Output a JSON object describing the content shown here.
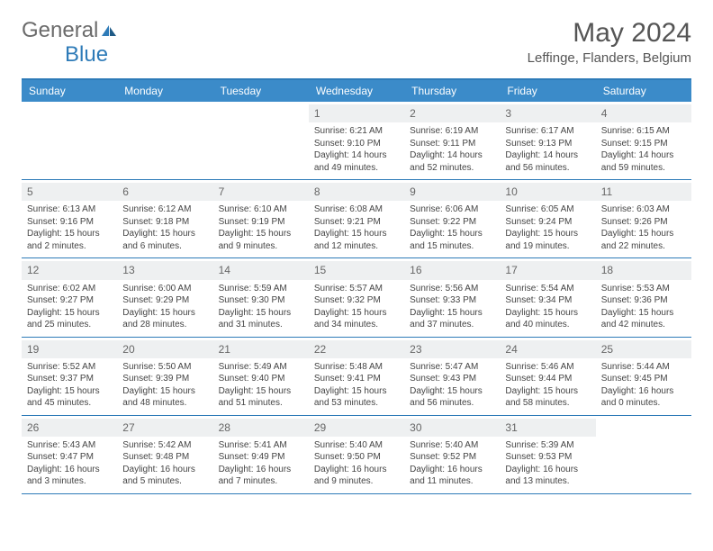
{
  "logo": {
    "text1": "General",
    "text2": "Blue"
  },
  "title": "May 2024",
  "location": "Leffinge, Flanders, Belgium",
  "colors": {
    "accent": "#2e7bb8",
    "header_bg": "#3b8bc9",
    "daynum_bg": "#eef0f1",
    "logo_gray": "#6b6b6b",
    "logo_blue": "#2e7bb8",
    "text": "#444444"
  },
  "dayNames": [
    "Sunday",
    "Monday",
    "Tuesday",
    "Wednesday",
    "Thursday",
    "Friday",
    "Saturday"
  ],
  "weeks": [
    [
      {
        "day": "",
        "sunrise": "",
        "sunset": "",
        "daylight": ""
      },
      {
        "day": "",
        "sunrise": "",
        "sunset": "",
        "daylight": ""
      },
      {
        "day": "",
        "sunrise": "",
        "sunset": "",
        "daylight": ""
      },
      {
        "day": "1",
        "sunrise": "Sunrise: 6:21 AM",
        "sunset": "Sunset: 9:10 PM",
        "daylight": "Daylight: 14 hours and 49 minutes."
      },
      {
        "day": "2",
        "sunrise": "Sunrise: 6:19 AM",
        "sunset": "Sunset: 9:11 PM",
        "daylight": "Daylight: 14 hours and 52 minutes."
      },
      {
        "day": "3",
        "sunrise": "Sunrise: 6:17 AM",
        "sunset": "Sunset: 9:13 PM",
        "daylight": "Daylight: 14 hours and 56 minutes."
      },
      {
        "day": "4",
        "sunrise": "Sunrise: 6:15 AM",
        "sunset": "Sunset: 9:15 PM",
        "daylight": "Daylight: 14 hours and 59 minutes."
      }
    ],
    [
      {
        "day": "5",
        "sunrise": "Sunrise: 6:13 AM",
        "sunset": "Sunset: 9:16 PM",
        "daylight": "Daylight: 15 hours and 2 minutes."
      },
      {
        "day": "6",
        "sunrise": "Sunrise: 6:12 AM",
        "sunset": "Sunset: 9:18 PM",
        "daylight": "Daylight: 15 hours and 6 minutes."
      },
      {
        "day": "7",
        "sunrise": "Sunrise: 6:10 AM",
        "sunset": "Sunset: 9:19 PM",
        "daylight": "Daylight: 15 hours and 9 minutes."
      },
      {
        "day": "8",
        "sunrise": "Sunrise: 6:08 AM",
        "sunset": "Sunset: 9:21 PM",
        "daylight": "Daylight: 15 hours and 12 minutes."
      },
      {
        "day": "9",
        "sunrise": "Sunrise: 6:06 AM",
        "sunset": "Sunset: 9:22 PM",
        "daylight": "Daylight: 15 hours and 15 minutes."
      },
      {
        "day": "10",
        "sunrise": "Sunrise: 6:05 AM",
        "sunset": "Sunset: 9:24 PM",
        "daylight": "Daylight: 15 hours and 19 minutes."
      },
      {
        "day": "11",
        "sunrise": "Sunrise: 6:03 AM",
        "sunset": "Sunset: 9:26 PM",
        "daylight": "Daylight: 15 hours and 22 minutes."
      }
    ],
    [
      {
        "day": "12",
        "sunrise": "Sunrise: 6:02 AM",
        "sunset": "Sunset: 9:27 PM",
        "daylight": "Daylight: 15 hours and 25 minutes."
      },
      {
        "day": "13",
        "sunrise": "Sunrise: 6:00 AM",
        "sunset": "Sunset: 9:29 PM",
        "daylight": "Daylight: 15 hours and 28 minutes."
      },
      {
        "day": "14",
        "sunrise": "Sunrise: 5:59 AM",
        "sunset": "Sunset: 9:30 PM",
        "daylight": "Daylight: 15 hours and 31 minutes."
      },
      {
        "day": "15",
        "sunrise": "Sunrise: 5:57 AM",
        "sunset": "Sunset: 9:32 PM",
        "daylight": "Daylight: 15 hours and 34 minutes."
      },
      {
        "day": "16",
        "sunrise": "Sunrise: 5:56 AM",
        "sunset": "Sunset: 9:33 PM",
        "daylight": "Daylight: 15 hours and 37 minutes."
      },
      {
        "day": "17",
        "sunrise": "Sunrise: 5:54 AM",
        "sunset": "Sunset: 9:34 PM",
        "daylight": "Daylight: 15 hours and 40 minutes."
      },
      {
        "day": "18",
        "sunrise": "Sunrise: 5:53 AM",
        "sunset": "Sunset: 9:36 PM",
        "daylight": "Daylight: 15 hours and 42 minutes."
      }
    ],
    [
      {
        "day": "19",
        "sunrise": "Sunrise: 5:52 AM",
        "sunset": "Sunset: 9:37 PM",
        "daylight": "Daylight: 15 hours and 45 minutes."
      },
      {
        "day": "20",
        "sunrise": "Sunrise: 5:50 AM",
        "sunset": "Sunset: 9:39 PM",
        "daylight": "Daylight: 15 hours and 48 minutes."
      },
      {
        "day": "21",
        "sunrise": "Sunrise: 5:49 AM",
        "sunset": "Sunset: 9:40 PM",
        "daylight": "Daylight: 15 hours and 51 minutes."
      },
      {
        "day": "22",
        "sunrise": "Sunrise: 5:48 AM",
        "sunset": "Sunset: 9:41 PM",
        "daylight": "Daylight: 15 hours and 53 minutes."
      },
      {
        "day": "23",
        "sunrise": "Sunrise: 5:47 AM",
        "sunset": "Sunset: 9:43 PM",
        "daylight": "Daylight: 15 hours and 56 minutes."
      },
      {
        "day": "24",
        "sunrise": "Sunrise: 5:46 AM",
        "sunset": "Sunset: 9:44 PM",
        "daylight": "Daylight: 15 hours and 58 minutes."
      },
      {
        "day": "25",
        "sunrise": "Sunrise: 5:44 AM",
        "sunset": "Sunset: 9:45 PM",
        "daylight": "Daylight: 16 hours and 0 minutes."
      }
    ],
    [
      {
        "day": "26",
        "sunrise": "Sunrise: 5:43 AM",
        "sunset": "Sunset: 9:47 PM",
        "daylight": "Daylight: 16 hours and 3 minutes."
      },
      {
        "day": "27",
        "sunrise": "Sunrise: 5:42 AM",
        "sunset": "Sunset: 9:48 PM",
        "daylight": "Daylight: 16 hours and 5 minutes."
      },
      {
        "day": "28",
        "sunrise": "Sunrise: 5:41 AM",
        "sunset": "Sunset: 9:49 PM",
        "daylight": "Daylight: 16 hours and 7 minutes."
      },
      {
        "day": "29",
        "sunrise": "Sunrise: 5:40 AM",
        "sunset": "Sunset: 9:50 PM",
        "daylight": "Daylight: 16 hours and 9 minutes."
      },
      {
        "day": "30",
        "sunrise": "Sunrise: 5:40 AM",
        "sunset": "Sunset: 9:52 PM",
        "daylight": "Daylight: 16 hours and 11 minutes."
      },
      {
        "day": "31",
        "sunrise": "Sunrise: 5:39 AM",
        "sunset": "Sunset: 9:53 PM",
        "daylight": "Daylight: 16 hours and 13 minutes."
      },
      {
        "day": "",
        "sunrise": "",
        "sunset": "",
        "daylight": ""
      }
    ]
  ]
}
